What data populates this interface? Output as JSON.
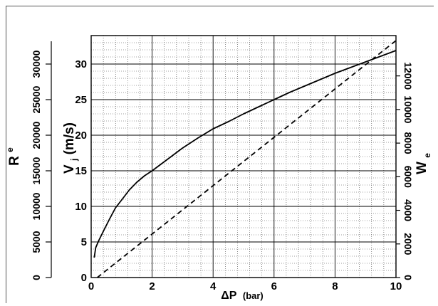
{
  "chart_data": {
    "type": "line",
    "xlabel": {
      "symbol": "ΔP",
      "unit": "(bar)"
    },
    "y_left_inner_label": {
      "main": "V",
      "sub": "j",
      "unit": " (m/s)"
    },
    "y_left_outer_label": {
      "main": "R",
      "sub": "e"
    },
    "y_right_label": {
      "main": "W",
      "sub": "e"
    },
    "xlim": [
      0,
      10
    ],
    "ylim": [
      0,
      34
    ],
    "y_outer_lim": [
      0,
      34000
    ],
    "y_right_lim": [
      0,
      14400
    ],
    "x_ticks": [
      "0",
      "2",
      "4",
      "6",
      "8",
      "10"
    ],
    "y_ticks": [
      "0",
      "5",
      "10",
      "15",
      "20",
      "25",
      "30"
    ],
    "y_outer_ticks": [
      "0",
      "5000",
      "10000",
      "15000",
      "20000",
      "25000",
      "30000"
    ],
    "y_right_ticks": [
      "0",
      "2000",
      "4000",
      "6000",
      "8000",
      "10000",
      "12000"
    ],
    "grid": true,
    "series": [
      {
        "style": "solid",
        "color": "#000000",
        "x": [
          0.1,
          0.15,
          0.25,
          0.4,
          0.6,
          0.8,
          1.0,
          1.25,
          1.5,
          1.75,
          2.0,
          2.5,
          3.0,
          3.5,
          4.0,
          4.5,
          5.0,
          5.5,
          6.0,
          6.5,
          7.0,
          7.5,
          8.0,
          8.5,
          9.0,
          9.5,
          10.0
        ],
        "y": [
          2.8,
          4.2,
          5.2,
          6.5,
          8.2,
          9.8,
          10.9,
          12.3,
          13.4,
          14.3,
          15.0,
          16.6,
          18.2,
          19.6,
          20.9,
          21.9,
          23.0,
          24.0,
          25.0,
          26.0,
          26.9,
          27.8,
          28.7,
          29.5,
          30.3,
          31.1,
          31.9
        ]
      },
      {
        "style": "dashed",
        "color": "#000000",
        "x": [
          0.2,
          10.0
        ],
        "y": [
          0.0,
          33.3
        ]
      }
    ]
  }
}
